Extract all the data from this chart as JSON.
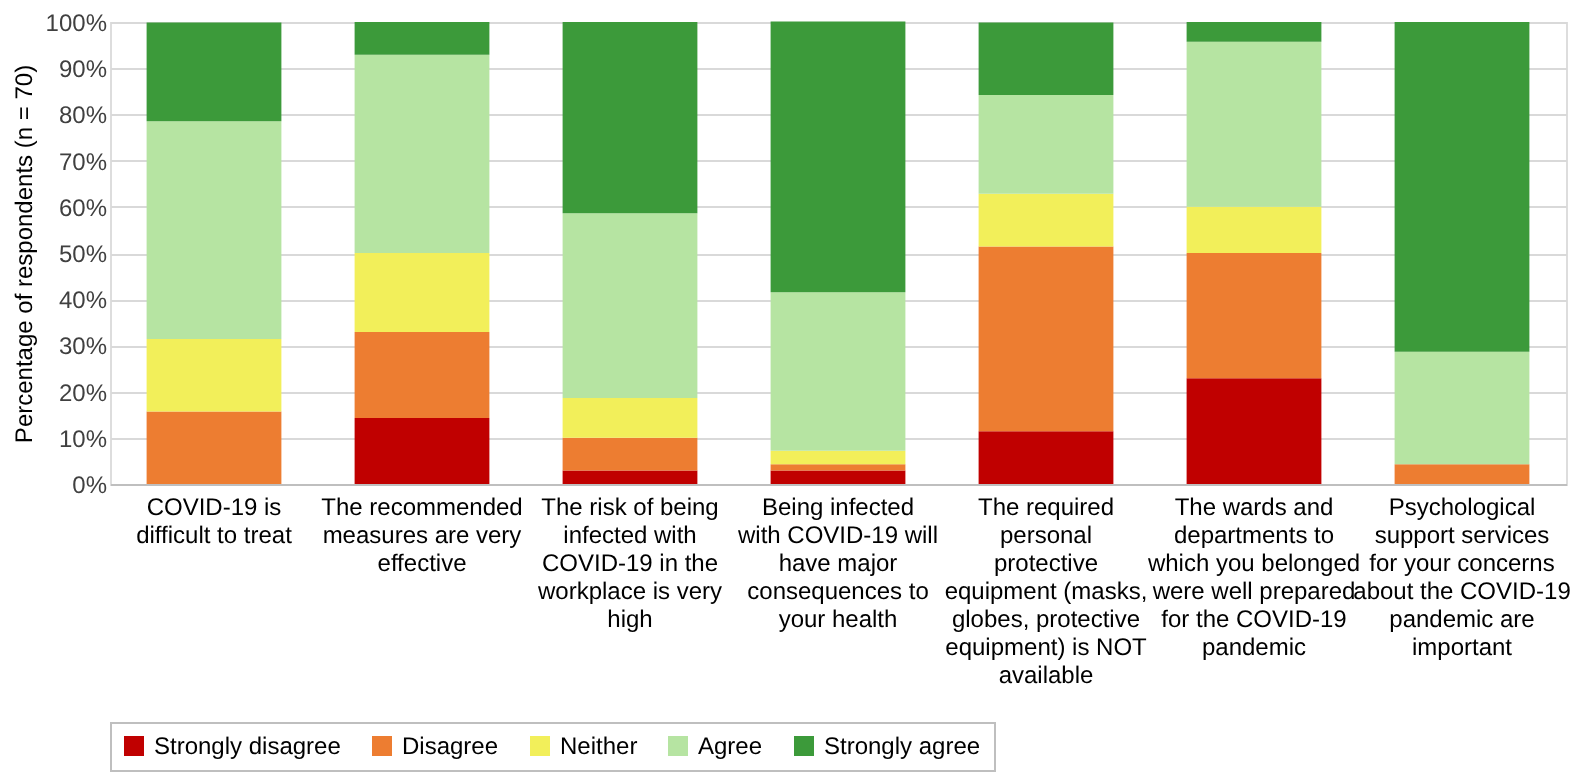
{
  "chart_data": {
    "type": "bar",
    "stacked": true,
    "ylabel": "Percentage of respondents (n = 70)",
    "categories": [
      "COVID-19 is difficult to treat",
      "The recommended measures are very effective",
      "The risk of being infected with COVID-19 in the workplace is very high",
      "Being infected with COVID-19 will have major consequences to your health",
      "The required personal protective equipment (masks, globes, protective equipment) is NOT available",
      "The wards and departments to which you belonged were well prepared for the COVID-19 pandemic",
      "Psychological support services for your concerns about the COVID-19 pandemic are important"
    ],
    "series": [
      {
        "name": "Strongly disagree",
        "color": "#c00000",
        "values": [
          0,
          14.3,
          2.9,
          2.9,
          11.4,
          22.9,
          0
        ]
      },
      {
        "name": "Disagree",
        "color": "#ed7d31",
        "values": [
          15.7,
          18.6,
          7.1,
          1.4,
          40,
          27.1,
          4.3
        ]
      },
      {
        "name": "Neither",
        "color": "#f2ef5a",
        "values": [
          15.7,
          17.1,
          8.6,
          2.9,
          11.4,
          10,
          0
        ]
      },
      {
        "name": "Agree",
        "color": "#b6e4a2",
        "values": [
          47.1,
          42.9,
          40,
          34.3,
          21.4,
          35.7,
          24.3
        ]
      },
      {
        "name": "Strongly agree",
        "color": "#3c9a3a",
        "values": [
          21.4,
          7.1,
          41.4,
          58.6,
          15.7,
          4.3,
          71.4
        ]
      }
    ],
    "ylim": [
      0,
      100
    ],
    "yticks": [
      {
        "value": 0,
        "label": "0%"
      },
      {
        "value": 10,
        "label": "10%"
      },
      {
        "value": 20,
        "label": "20%"
      },
      {
        "value": 30,
        "label": "30%"
      },
      {
        "value": 40,
        "label": "40%"
      },
      {
        "value": 50,
        "label": "50%"
      },
      {
        "value": 60,
        "label": "60%"
      },
      {
        "value": 70,
        "label": "70%"
      },
      {
        "value": 80,
        "label": "80%"
      },
      {
        "value": 90,
        "label": "90%"
      },
      {
        "value": 100,
        "label": "100%"
      }
    ],
    "grid": "y",
    "legend": "bottom"
  }
}
